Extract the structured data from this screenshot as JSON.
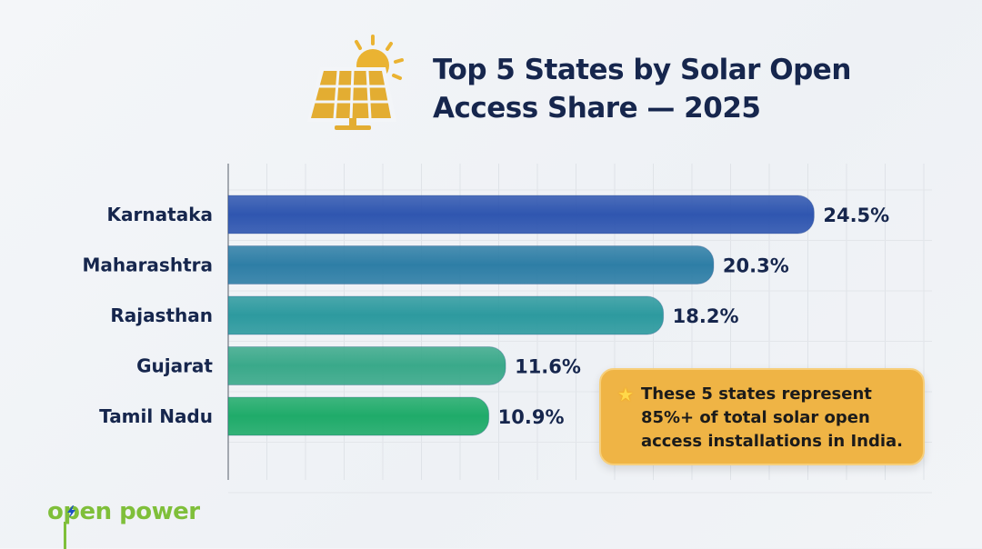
{
  "chart_data": {
    "type": "bar",
    "orientation": "horizontal",
    "title": "Top 5 States by Solar Open Access Share — 2025",
    "categories": [
      "Karnataka",
      "Maharashtra",
      "Rajasthan",
      "Gujarat",
      "Tamil Nadu"
    ],
    "values": [
      24.5,
      20.3,
      18.2,
      11.6,
      10.9
    ],
    "value_labels": [
      "24.5%",
      "20.3%",
      "18.2%",
      "11.6%",
      "10.9%"
    ],
    "unit": "%",
    "colors": [
      "#2f56b0",
      "#2e7ea6",
      "#2d9a9f",
      "#3aa98a",
      "#1fab6a"
    ],
    "grid": true
  },
  "header": {
    "title_line1": "Top 5 States by Solar Open",
    "title_line2": "Access Share — 2025",
    "icon": "solar-panel-sun-icon"
  },
  "callout": {
    "icon": "star-icon",
    "text": "These 5 states represent 85%+ of total solar open access installations in India."
  },
  "brand": {
    "logo_text": "open power",
    "color": "#7fbf3a"
  }
}
